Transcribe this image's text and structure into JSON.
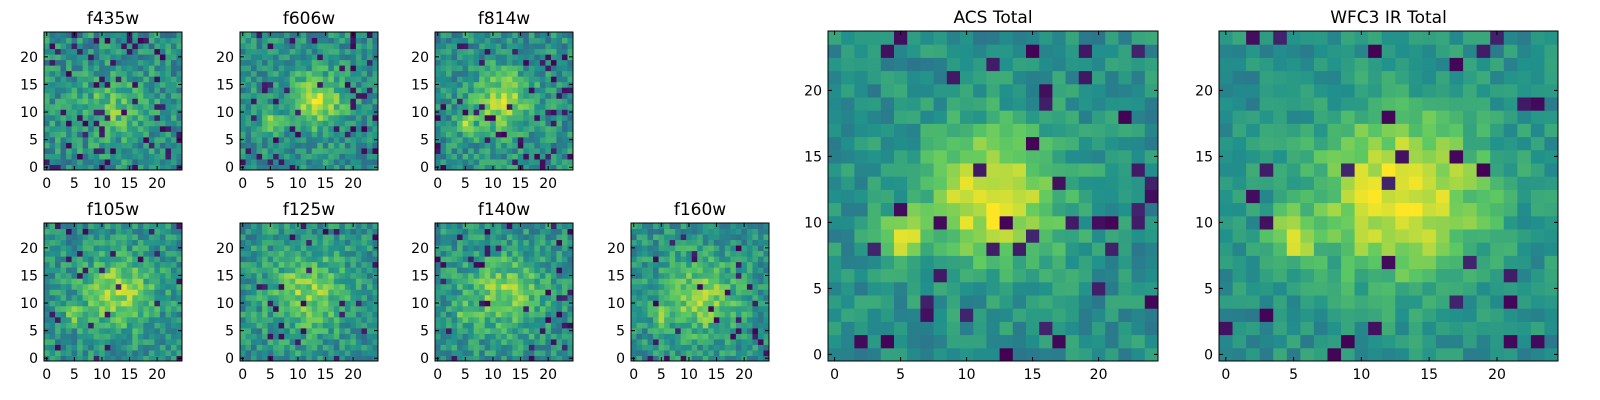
{
  "chart_data": [
    {
      "type": "heatmap",
      "title": "f435w",
      "grid_size": 25,
      "peak": [
        12,
        11
      ],
      "peak_sigma": 4.0,
      "second_peak": null,
      "contrast": 0.22,
      "noise": 0.34,
      "dark_pixel_rate": 0.09,
      "seed": 11,
      "x_ticks": [
        0,
        5,
        10,
        15,
        20
      ],
      "y_ticks": [
        0,
        5,
        10,
        15,
        20
      ]
    },
    {
      "type": "heatmap",
      "title": "f606w",
      "grid_size": 25,
      "peak": [
        13,
        12
      ],
      "peak_sigma": 3.5,
      "second_peak": [
        5,
        8
      ],
      "contrast": 0.4,
      "noise": 0.3,
      "dark_pixel_rate": 0.07,
      "seed": 23,
      "x_ticks": [
        0,
        5,
        10,
        15,
        20
      ],
      "y_ticks": [
        0,
        5,
        10,
        15,
        20
      ]
    },
    {
      "type": "heatmap",
      "title": "f814w",
      "grid_size": 25,
      "peak": [
        12,
        12
      ],
      "peak_sigma": 3.8,
      "second_peak": [
        5,
        8
      ],
      "contrast": 0.35,
      "noise": 0.32,
      "dark_pixel_rate": 0.07,
      "seed": 37,
      "x_ticks": [
        0,
        5,
        10,
        15,
        20
      ],
      "y_ticks": [
        0,
        5,
        10,
        15,
        20
      ]
    },
    {
      "type": "heatmap",
      "title": "f105w",
      "grid_size": 25,
      "peak": [
        13,
        12
      ],
      "peak_sigma": 4.5,
      "second_peak": [
        5,
        8
      ],
      "contrast": 0.35,
      "noise": 0.3,
      "dark_pixel_rate": 0.05,
      "seed": 41,
      "x_ticks": [
        0,
        5,
        10,
        15,
        20
      ],
      "y_ticks": [
        0,
        5,
        10,
        15,
        20
      ]
    },
    {
      "type": "heatmap",
      "title": "f125w",
      "grid_size": 25,
      "peak": [
        12,
        12
      ],
      "peak_sigma": 5.0,
      "second_peak": null,
      "contrast": 0.3,
      "noise": 0.32,
      "dark_pixel_rate": 0.05,
      "seed": 53,
      "x_ticks": [
        0,
        5,
        10,
        15,
        20
      ],
      "y_ticks": [
        0,
        5,
        10,
        15,
        20
      ]
    },
    {
      "type": "heatmap",
      "title": "f140w",
      "grid_size": 25,
      "peak": [
        12,
        12
      ],
      "peak_sigma": 5.0,
      "second_peak": [
        5,
        8
      ],
      "contrast": 0.3,
      "noise": 0.3,
      "dark_pixel_rate": 0.05,
      "seed": 67,
      "x_ticks": [
        0,
        5,
        10,
        15,
        20
      ],
      "y_ticks": [
        0,
        5,
        10,
        15,
        20
      ]
    },
    {
      "type": "heatmap",
      "title": "f160w",
      "grid_size": 25,
      "peak": [
        12,
        11
      ],
      "peak_sigma": 5.0,
      "second_peak": [
        5,
        8
      ],
      "contrast": 0.3,
      "noise": 0.3,
      "dark_pixel_rate": 0.05,
      "seed": 79,
      "x_ticks": [
        0,
        5,
        10,
        15,
        20
      ],
      "y_ticks": [
        0,
        5,
        10,
        15,
        20
      ]
    },
    {
      "type": "heatmap",
      "title": "ACS Total",
      "grid_size": 25,
      "peak": [
        12,
        12
      ],
      "peak_sigma": 3.6,
      "second_peak": [
        5,
        9
      ],
      "contrast": 0.5,
      "noise": 0.22,
      "dark_pixel_rate": 0.06,
      "seed": 97,
      "x_ticks": [
        0,
        5,
        10,
        15,
        20
      ],
      "y_ticks": [
        0,
        5,
        10,
        15,
        20
      ]
    },
    {
      "type": "heatmap",
      "title": "WFC3 IR Total",
      "grid_size": 25,
      "peak": [
        13,
        12
      ],
      "peak_sigma": 4.5,
      "second_peak": [
        5,
        9
      ],
      "contrast": 0.5,
      "noise": 0.2,
      "dark_pixel_rate": 0.05,
      "seed": 113,
      "x_ticks": [
        0,
        5,
        10,
        15,
        20
      ],
      "y_ticks": [
        0,
        5,
        10,
        15,
        20
      ]
    }
  ],
  "colormap": [
    "#440154",
    "#3b528b",
    "#21918c",
    "#5ec962",
    "#fde725"
  ]
}
